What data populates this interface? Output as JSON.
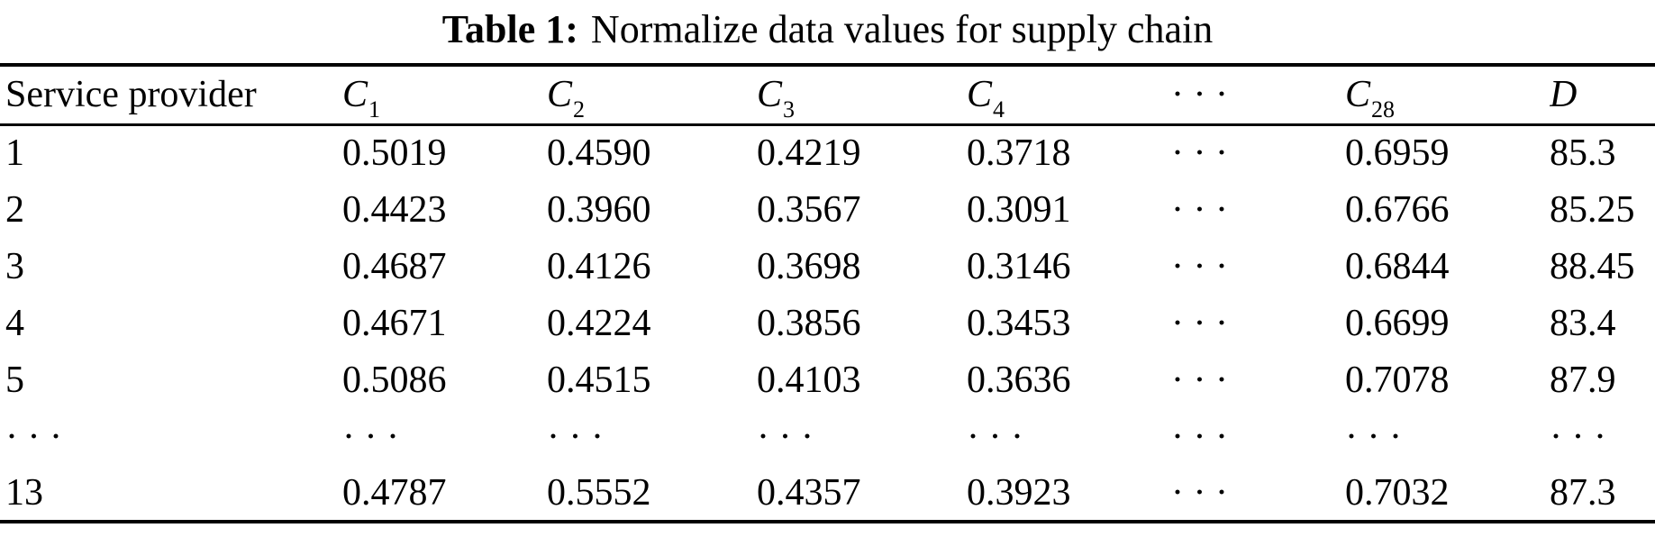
{
  "page": {
    "background_color": "#ffffff",
    "text_color": "#000000"
  },
  "caption": {
    "label": "Table 1:",
    "text": "Normalize data values for supply chain"
  },
  "table": {
    "headers": [
      {
        "text": "Service provider"
      },
      {
        "base": "C",
        "sub": "1",
        "italic": true
      },
      {
        "base": "C",
        "sub": "2",
        "italic": true
      },
      {
        "base": "C",
        "sub": "3",
        "italic": true
      },
      {
        "base": "C",
        "sub": "4",
        "italic": true
      },
      {
        "text": "· · ·"
      },
      {
        "base": "C",
        "sub": "28",
        "italic": true
      },
      {
        "base": "D",
        "italic": true
      }
    ],
    "rows": [
      [
        "1",
        "0.5019",
        "0.4590",
        "0.4219",
        "0.3718",
        "· · ·",
        "0.6959",
        "85.3"
      ],
      [
        "2",
        "0.4423",
        "0.3960",
        "0.3567",
        "0.3091",
        "· · ·",
        "0.6766",
        "85.25"
      ],
      [
        "3",
        "0.4687",
        "0.4126",
        "0.3698",
        "0.3146",
        "· · ·",
        "0.6844",
        "88.45"
      ],
      [
        "4",
        "0.4671",
        "0.4224",
        "0.3856",
        "0.3453",
        "· · ·",
        "0.6699",
        "83.4"
      ],
      [
        "5",
        "0.5086",
        "0.4515",
        "0.4103",
        "0.3636",
        "· · ·",
        "0.7078",
        "87.9"
      ],
      [
        "· · ·",
        "· · ·",
        "· · ·",
        "· · ·",
        "· · ·",
        "· · ·",
        "· · ·",
        "· · ·"
      ],
      [
        "13",
        "0.4787",
        "0.5552",
        "0.4357",
        "0.3923",
        "· · ·",
        "0.7032",
        "87.3"
      ]
    ]
  }
}
